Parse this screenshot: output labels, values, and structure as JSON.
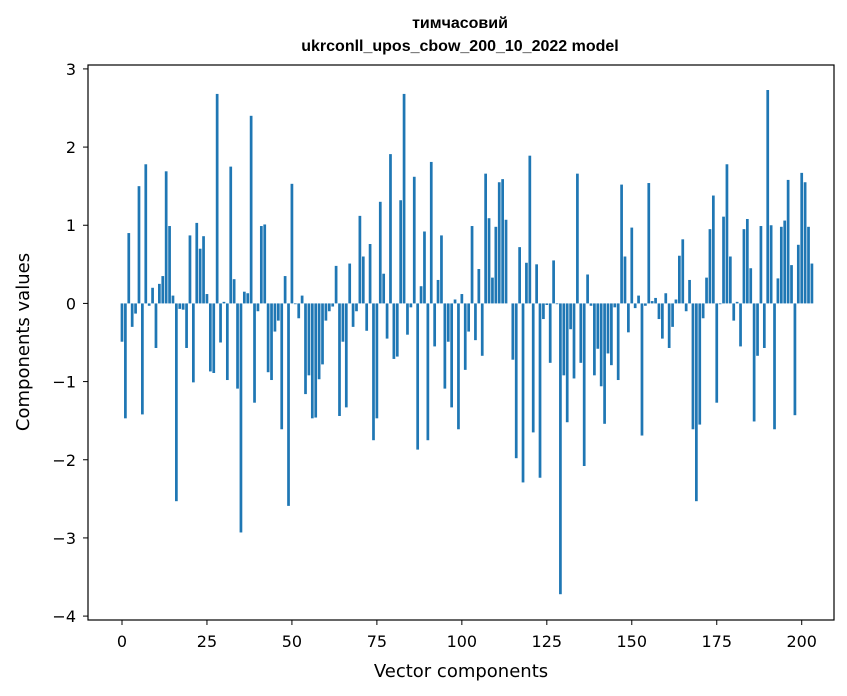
{
  "chart_data": {
    "type": "bar",
    "title": "тимчасовий",
    "subtitle": "ukrconll_upos_cbow_200_10_2022 model",
    "xlabel": "Vector components",
    "ylabel": "Components values",
    "xlim": [
      -10,
      209.5
    ],
    "ylim": [
      -4.05,
      3.05
    ],
    "xticks": [
      0,
      25,
      50,
      75,
      100,
      125,
      150,
      175,
      200
    ],
    "xtick_labels": [
      "0",
      "25",
      "50",
      "75",
      "100",
      "125",
      "150",
      "175",
      "200"
    ],
    "yticks": [
      -4,
      -3,
      -2,
      -1,
      0,
      1,
      2,
      3
    ],
    "ytick_labels": [
      "−4",
      "−3",
      "−2",
      "−1",
      "0",
      "1",
      "2",
      "3"
    ],
    "grid": false,
    "bar_color": "#1f77b4",
    "x_start": 0,
    "values": [
      -0.49,
      -1.47,
      0.9,
      -0.3,
      -0.13,
      1.5,
      -1.42,
      1.78,
      -0.03,
      0.2,
      -0.57,
      0.25,
      0.35,
      1.69,
      0.99,
      0.1,
      -2.53,
      -0.07,
      -0.08,
      -0.57,
      0.87,
      -1.01,
      1.03,
      0.7,
      0.86,
      0.12,
      -0.87,
      -0.89,
      2.68,
      -0.5,
      0.02,
      -0.98,
      1.75,
      0.31,
      -1.09,
      -2.93,
      0.15,
      0.13,
      2.4,
      -1.27,
      -0.1,
      0.99,
      1.01,
      -0.88,
      -0.98,
      -0.36,
      -0.22,
      -1.61,
      0.35,
      -2.59,
      1.53,
      -0.01,
      -0.19,
      0.1,
      -1.16,
      -0.92,
      -1.47,
      -1.46,
      -0.97,
      -0.78,
      -0.22,
      -0.1,
      -0.04,
      0.48,
      -1.44,
      -0.49,
      -1.33,
      0.51,
      -0.3,
      -0.1,
      1.12,
      0.6,
      -0.35,
      0.76,
      -1.75,
      -1.47,
      1.3,
      0.38,
      -0.45,
      1.91,
      -0.71,
      -0.68,
      1.32,
      2.68,
      -0.4,
      -0.05,
      1.62,
      -1.87,
      0.22,
      0.92,
      -1.75,
      1.81,
      -0.55,
      0.3,
      0.87,
      -1.09,
      -0.49,
      -1.33,
      0.05,
      -1.61,
      0.12,
      -0.85,
      -0.36,
      0.99,
      -0.47,
      0.44,
      -0.67,
      1.66,
      1.09,
      0.33,
      0.98,
      1.55,
      1.59,
      1.07,
      0.0,
      -0.72,
      -1.98,
      0.72,
      -2.29,
      0.52,
      1.89,
      -1.65,
      0.5,
      -2.23,
      -0.2,
      -0.02,
      -0.76,
      0.55,
      -0.01,
      -3.72,
      -0.92,
      -1.52,
      -0.33,
      -0.96,
      1.66,
      -0.76,
      -2.08,
      0.37,
      -0.03,
      -0.92,
      -0.58,
      -1.06,
      -1.54,
      -0.64,
      -0.79,
      -0.05,
      -0.98,
      1.52,
      0.6,
      -0.37,
      0.97,
      -0.06,
      0.1,
      -1.69,
      -0.03,
      1.54,
      0.03,
      0.07,
      -0.2,
      -0.45,
      0.13,
      -0.57,
      -0.3,
      0.05,
      0.61,
      0.82,
      -0.1,
      0.3,
      -1.61,
      -2.53,
      -1.55,
      -0.19,
      0.33,
      0.95,
      1.38,
      -1.27,
      -0.01,
      1.11,
      1.78,
      0.6,
      -0.22,
      0.02,
      -0.55,
      0.95,
      1.08,
      0.45,
      -1.51,
      -0.67,
      0.99,
      -0.57,
      2.73,
      1.0,
      -1.61,
      0.32,
      0.98,
      1.06,
      1.58,
      0.49,
      -1.43,
      0.75,
      1.67,
      1.55,
      0.98,
      0.51
    ]
  }
}
